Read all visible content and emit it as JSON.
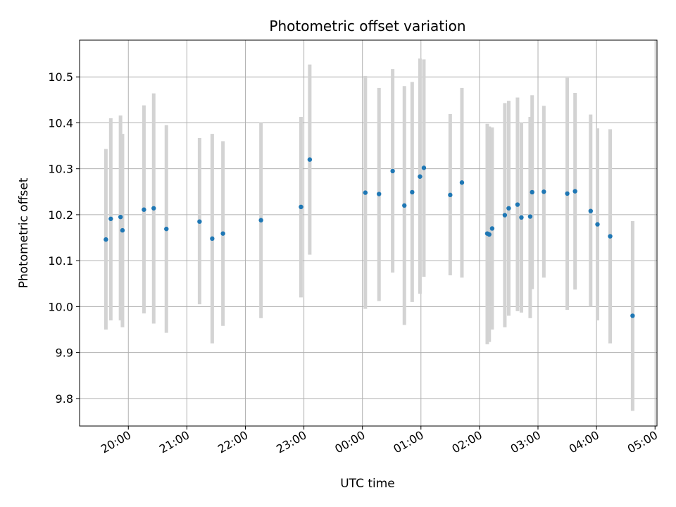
{
  "chart_data": {
    "type": "scatter",
    "title": "Photometric offset variation",
    "xlabel": "UTC time",
    "ylabel": "Photometric offset",
    "xlim": [
      "19:10",
      "05:02"
    ],
    "ylim": [
      9.74,
      10.58
    ],
    "x_ticks": [
      "20:00",
      "21:00",
      "22:00",
      "23:00",
      "00:00",
      "01:00",
      "02:00",
      "03:00",
      "04:00",
      "05:00"
    ],
    "y_ticks": [
      9.8,
      9.9,
      10.0,
      10.1,
      10.2,
      10.3,
      10.4,
      10.5
    ],
    "grid": true,
    "marker_color": "#1f77b4",
    "errorbar_color": "#d3d3d3",
    "points": [
      {
        "t": "19:37",
        "y": 10.146,
        "lo": 9.95,
        "hi": 10.343
      },
      {
        "t": "19:42",
        "y": 10.191,
        "lo": 9.97,
        "hi": 10.41
      },
      {
        "t": "19:52",
        "y": 10.195,
        "lo": 9.97,
        "hi": 10.416
      },
      {
        "t": "19:54",
        "y": 10.166,
        "lo": 9.955,
        "hi": 10.376
      },
      {
        "t": "20:16",
        "y": 10.211,
        "lo": 9.985,
        "hi": 10.438
      },
      {
        "t": "20:26",
        "y": 10.214,
        "lo": 9.963,
        "hi": 10.464
      },
      {
        "t": "20:39",
        "y": 10.169,
        "lo": 9.943,
        "hi": 10.395
      },
      {
        "t": "21:13",
        "y": 10.185,
        "lo": 10.005,
        "hi": 10.367
      },
      {
        "t": "21:26",
        "y": 10.148,
        "lo": 9.92,
        "hi": 10.376
      },
      {
        "t": "21:37",
        "y": 10.159,
        "lo": 9.958,
        "hi": 10.36
      },
      {
        "t": "22:16",
        "y": 10.188,
        "lo": 9.975,
        "hi": 10.4
      },
      {
        "t": "22:57",
        "y": 10.217,
        "lo": 10.02,
        "hi": 10.413
      },
      {
        "t": "23:06",
        "y": 10.32,
        "lo": 10.113,
        "hi": 10.527
      },
      {
        "t": "00:03",
        "y": 10.248,
        "lo": 9.995,
        "hi": 10.502
      },
      {
        "t": "00:17",
        "y": 10.245,
        "lo": 10.012,
        "hi": 10.476
      },
      {
        "t": "00:31",
        "y": 10.295,
        "lo": 10.074,
        "hi": 10.517
      },
      {
        "t": "00:43",
        "y": 10.22,
        "lo": 9.96,
        "hi": 10.48
      },
      {
        "t": "00:51",
        "y": 10.249,
        "lo": 10.01,
        "hi": 10.489
      },
      {
        "t": "00:59",
        "y": 10.283,
        "lo": 10.028,
        "hi": 10.54
      },
      {
        "t": "01:03",
        "y": 10.302,
        "lo": 10.065,
        "hi": 10.538
      },
      {
        "t": "01:30",
        "y": 10.243,
        "lo": 10.068,
        "hi": 10.419
      },
      {
        "t": "01:42",
        "y": 10.27,
        "lo": 10.063,
        "hi": 10.476
      },
      {
        "t": "02:08",
        "y": 10.159,
        "lo": 9.918,
        "hi": 10.398
      },
      {
        "t": "02:10",
        "y": 10.157,
        "lo": 9.923,
        "hi": 10.392
      },
      {
        "t": "02:13",
        "y": 10.17,
        "lo": 9.95,
        "hi": 10.39
      },
      {
        "t": "02:26",
        "y": 10.199,
        "lo": 9.955,
        "hi": 10.443
      },
      {
        "t": "02:30",
        "y": 10.214,
        "lo": 9.98,
        "hi": 10.448
      },
      {
        "t": "02:39",
        "y": 10.222,
        "lo": 9.99,
        "hi": 10.455
      },
      {
        "t": "02:43",
        "y": 10.194,
        "lo": 9.987,
        "hi": 10.401
      },
      {
        "t": "02:52",
        "y": 10.196,
        "lo": 9.975,
        "hi": 10.413
      },
      {
        "t": "02:54",
        "y": 10.249,
        "lo": 10.038,
        "hi": 10.46
      },
      {
        "t": "03:06",
        "y": 10.25,
        "lo": 10.063,
        "hi": 10.437
      },
      {
        "t": "03:30",
        "y": 10.246,
        "lo": 9.993,
        "hi": 10.498
      },
      {
        "t": "03:38",
        "y": 10.251,
        "lo": 10.037,
        "hi": 10.465
      },
      {
        "t": "03:54",
        "y": 10.208,
        "lo": 10.0,
        "hi": 10.418
      },
      {
        "t": "04:01",
        "y": 10.179,
        "lo": 9.97,
        "hi": 10.388
      },
      {
        "t": "04:14",
        "y": 10.153,
        "lo": 9.92,
        "hi": 10.386
      },
      {
        "t": "04:37",
        "y": 9.98,
        "lo": 9.773,
        "hi": 10.186
      }
    ]
  }
}
